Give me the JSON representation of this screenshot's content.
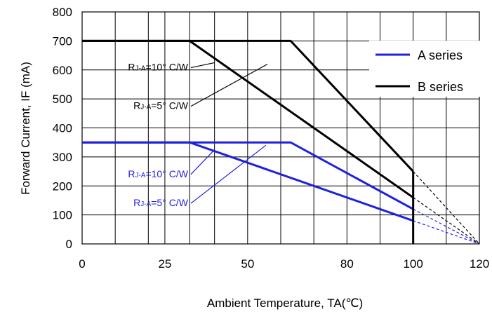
{
  "chart_data": {
    "type": "line",
    "xlabel": "Ambient Temperature, TA(℃)",
    "ylabel": "Forward Current, IF (mA)",
    "xlim": [
      0,
      120
    ],
    "ylim": [
      0,
      800
    ],
    "x_tick_labels": [
      {
        "value": 0,
        "label": "0"
      },
      {
        "value": 25,
        "label": "25"
      },
      {
        "value": 50,
        "label": "50"
      },
      {
        "value": 80,
        "label": "80"
      },
      {
        "value": 100,
        "label": "100"
      },
      {
        "value": 120,
        "label": "120"
      }
    ],
    "y_ticks": [
      0,
      100,
      200,
      300,
      400,
      500,
      600,
      700,
      800
    ],
    "x_grid": [
      0,
      10,
      20,
      25,
      32.5,
      40,
      50,
      60,
      70,
      80,
      90,
      100,
      110,
      120
    ],
    "grid": true,
    "legend_position": "top-right",
    "series": [
      {
        "name": "A series",
        "color": "#1f1fe0",
        "curves": [
          {
            "label": "RJ-A=10° C/W",
            "x": [
              0,
              63,
              100
            ],
            "y": [
              350,
              350,
              120
            ]
          },
          {
            "label": "RJ-A=5° C/W",
            "x": [
              0,
              32.5,
              100
            ],
            "y": [
              350,
              350,
              80
            ]
          }
        ],
        "extrapolations": [
          {
            "x": [
              100,
              120
            ],
            "y": [
              120,
              0
            ]
          },
          {
            "x": [
              100,
              120
            ],
            "y": [
              80,
              0
            ]
          }
        ]
      },
      {
        "name": "B series",
        "color": "#000000",
        "curves": [
          {
            "label": "RJ-A=10° C/W",
            "x": [
              0,
              63,
              100
            ],
            "y": [
              700,
              700,
              250
            ]
          },
          {
            "label": "RJ-A=5° C/W",
            "x": [
              0,
              32.5,
              100
            ],
            "y": [
              700,
              700,
              160
            ]
          }
        ],
        "extrapolations": [
          {
            "x": [
              100,
              120
            ],
            "y": [
              250,
              0
            ]
          },
          {
            "x": [
              100,
              120
            ],
            "y": [
              160,
              0
            ]
          }
        ],
        "limit": {
          "x": [
            100,
            100
          ],
          "y": [
            250,
            0
          ]
        }
      }
    ],
    "annotations": [
      {
        "series": "B series",
        "main": "R",
        "sub": "J-A",
        "rest": "=10° C/W",
        "lx": 40,
        "ly": 625,
        "x": 32,
        "y": 598
      },
      {
        "series": "B series",
        "main": "R",
        "sub": "J-A",
        "rest": "=5° C/W",
        "lx": 56,
        "ly": 620,
        "x": 32,
        "y": 465
      },
      {
        "series": "A series",
        "main": "R",
        "sub": "J-A",
        "rest": "=10° C/W",
        "lx": 40,
        "ly": 325,
        "x": 32,
        "y": 230
      },
      {
        "series": "A series",
        "main": "R",
        "sub": "J-A",
        "rest": "=5° C/W",
        "lx": 55.5,
        "ly": 340,
        "x": 32,
        "y": 130
      }
    ]
  }
}
